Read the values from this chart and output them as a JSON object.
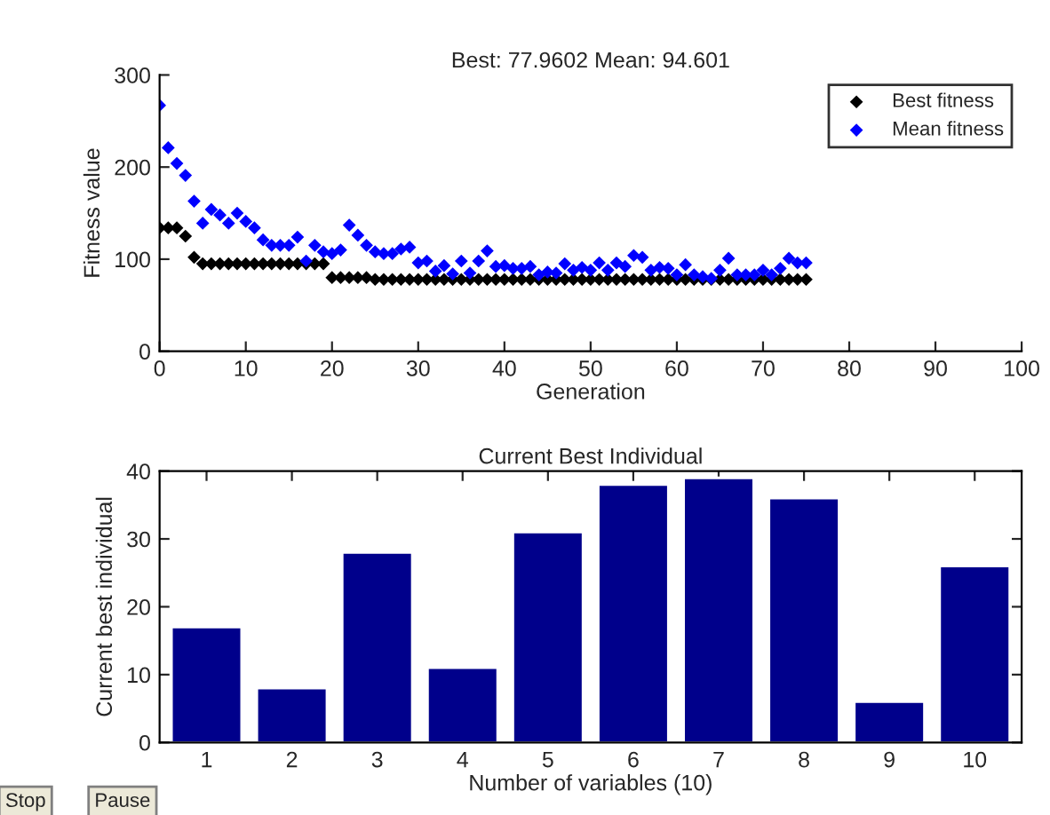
{
  "chart_data": [
    {
      "type": "scatter",
      "title": "Best: 77.9602 Mean: 94.601",
      "xlabel": "Generation",
      "ylabel": "Fitness value",
      "xlim": [
        0,
        100
      ],
      "ylim": [
        0,
        300
      ],
      "xticks": [
        0,
        10,
        20,
        30,
        40,
        50,
        60,
        70,
        80,
        90,
        100
      ],
      "yticks": [
        0,
        100,
        200,
        300
      ],
      "marker": "diamond",
      "legend": "top right",
      "grid": false,
      "x": [
        0,
        1,
        2,
        3,
        4,
        5,
        6,
        7,
        8,
        9,
        10,
        11,
        12,
        13,
        14,
        15,
        16,
        17,
        18,
        19,
        20,
        21,
        22,
        23,
        24,
        25,
        26,
        27,
        28,
        29,
        30,
        31,
        32,
        33,
        34,
        35,
        36,
        37,
        38,
        39,
        40,
        41,
        42,
        43,
        44,
        45,
        46,
        47,
        48,
        49,
        50,
        51,
        52,
        53,
        54,
        55,
        56,
        57,
        58,
        59,
        60,
        61,
        62,
        63,
        64,
        65,
        66,
        67,
        68,
        69,
        70,
        71,
        72,
        73,
        74,
        75
      ],
      "series": [
        {
          "name": "Best fitness",
          "color": "#000000",
          "values": [
            134,
            134,
            134,
            125,
            102,
            95,
            95,
            95,
            95,
            95,
            95,
            95,
            95,
            95,
            95,
            95,
            95,
            95,
            95,
            95,
            80,
            80,
            80,
            80,
            80,
            78,
            78,
            78,
            78,
            78,
            78,
            78,
            78,
            78,
            78,
            78,
            78,
            78,
            78,
            78,
            78,
            78,
            78,
            78,
            78,
            78,
            78,
            78,
            78,
            78,
            78,
            78,
            78,
            78,
            78,
            78,
            78,
            78,
            78,
            78,
            78,
            78,
            78,
            78,
            78,
            78,
            78,
            78,
            78,
            78,
            78,
            78,
            78,
            78,
            78,
            78
          ]
        },
        {
          "name": "Mean fitness",
          "color": "#0000ff",
          "values": [
            267,
            221,
            204,
            191,
            163,
            139,
            154,
            148,
            139,
            150,
            141,
            134,
            121,
            115,
            115,
            115,
            124,
            98,
            115,
            108,
            106,
            110,
            137,
            126,
            115,
            108,
            106,
            106,
            111,
            113,
            96,
            98,
            87,
            93,
            84,
            98,
            85,
            98,
            109,
            92,
            93,
            90,
            90,
            92,
            83,
            86,
            85,
            95,
            88,
            91,
            88,
            96,
            88,
            96,
            92,
            104,
            102,
            88,
            91,
            90,
            83,
            94,
            83,
            81,
            79,
            88,
            101,
            83,
            83,
            83,
            88,
            83,
            90,
            101,
            96,
            96
          ]
        }
      ]
    },
    {
      "type": "bar",
      "title": "Current Best Individual",
      "xlabel": "Number of variables (10)",
      "ylabel": "Current best individual",
      "categories": [
        "1",
        "2",
        "3",
        "4",
        "5",
        "6",
        "7",
        "8",
        "9",
        "10"
      ],
      "values": [
        17,
        8,
        28,
        11,
        31,
        38,
        39,
        36,
        6,
        26
      ],
      "color": "#00008b",
      "ylim": [
        0,
        40
      ],
      "yticks": [
        0,
        10,
        20,
        30,
        40
      ],
      "grid": false,
      "annotations": [
        "Stop",
        "Pause"
      ]
    }
  ]
}
